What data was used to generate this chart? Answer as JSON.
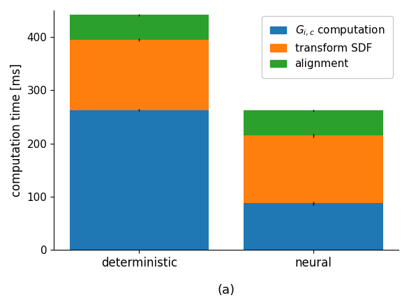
{
  "categories": [
    "deterministic",
    "neural"
  ],
  "blue_values": [
    263,
    88
  ],
  "orange_values": [
    132,
    127
  ],
  "green_values": [
    47,
    47
  ],
  "blue_errors": [
    2,
    3
  ],
  "orange_errors": [
    2,
    3
  ],
  "green_errors": [
    2,
    2
  ],
  "colors": {
    "blue": "#1f77b4",
    "orange": "#ff7f0e",
    "green": "#2ca02c"
  },
  "legend_labels": [
    "$G_{i,c}$ computation",
    "transform SDF",
    "alignment"
  ],
  "ylabel": "computation time [ms]",
  "xlabel_label": "(a)",
  "ylim": [
    0,
    450
  ],
  "yticks": [
    0,
    100,
    200,
    300,
    400
  ],
  "bar_width": 0.8,
  "figsize": [
    5.86,
    4.4
  ],
  "dpi": 100
}
